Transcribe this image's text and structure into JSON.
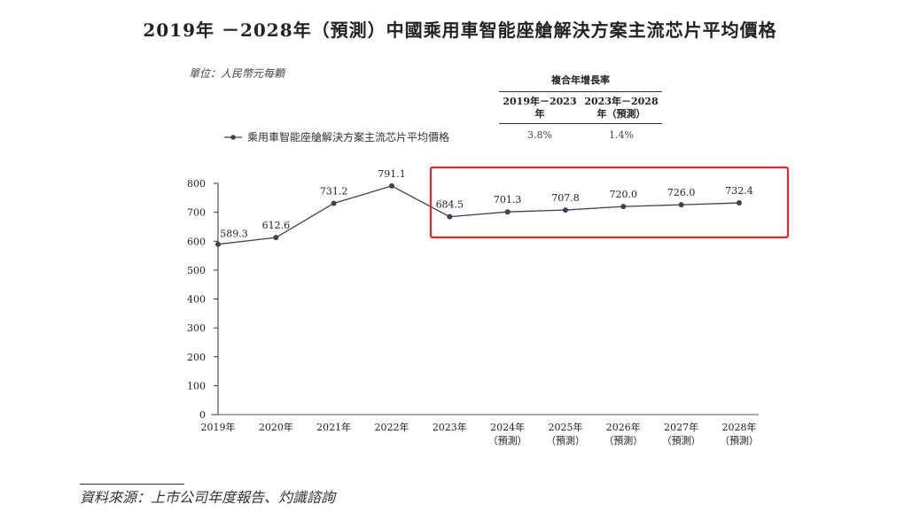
{
  "chart_data": {
    "type": "line",
    "title": "2019年 －2028年（預測）中國乘用車智能座艙解決方案主流芯片平均價格",
    "unit_label": "單位：人民幣元每顆",
    "categories": [
      "2019年",
      "2020年",
      "2021年",
      "2022年",
      "2023年",
      "2024年",
      "2025年",
      "2026年",
      "2027年",
      "2028年"
    ],
    "category_sublabels": [
      "",
      "",
      "",
      "",
      "",
      "（預測）",
      "（預測）",
      "（預測）",
      "（預測）",
      "（預測）"
    ],
    "series": [
      {
        "name": "乘用車智能座艙解決方案主流芯片平均價格",
        "values": [
          589.3,
          612.6,
          731.2,
          791.1,
          684.5,
          701.3,
          707.8,
          720.0,
          726.0,
          732.4
        ],
        "labels": [
          "589.3",
          "612.6",
          "731.2",
          "791.1",
          "684.5",
          "701.3",
          "707.8",
          "720.0",
          "726.0",
          "732.4"
        ],
        "color": "#3b4250"
      }
    ],
    "ylim": [
      0,
      800
    ],
    "yticks": [
      0,
      100,
      200,
      300,
      400,
      500,
      600,
      700,
      800
    ],
    "legend": "top-left",
    "highlight_color": "#e8262b",
    "highlight_range": [
      "2023年",
      "2028年"
    ]
  },
  "cagr_table": {
    "title": "複合年增長率",
    "headers": [
      "2019年－2023年",
      "2023年－2028年（預測）"
    ],
    "header_lines": [
      [
        "2019年－2023年"
      ],
      [
        "2023年－2028年",
        "（預測）"
      ]
    ],
    "values": [
      "3.8%",
      "1.4%"
    ]
  },
  "source": "資料來源：上市公司年度報告、灼識諮詢"
}
